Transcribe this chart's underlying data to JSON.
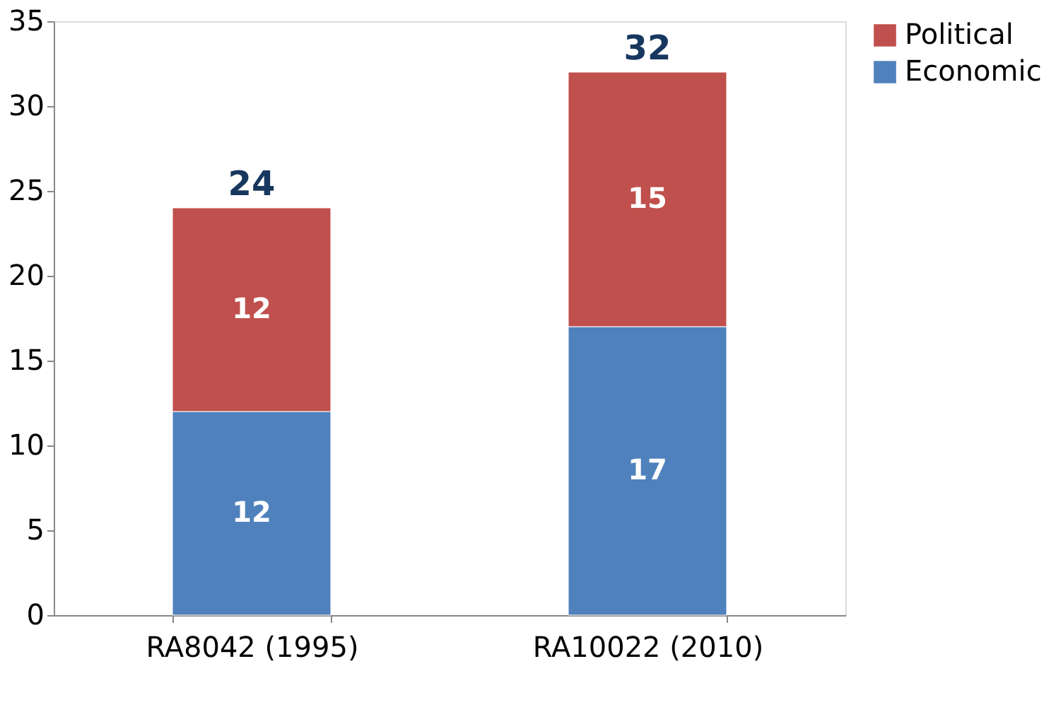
{
  "chart_data": {
    "type": "bar",
    "stacked": true,
    "categories": [
      "RA8042 (1995)",
      "RA10022 (2010)"
    ],
    "series": [
      {
        "name": "Economic",
        "color": "#4f81bd",
        "values": [
          12,
          17
        ]
      },
      {
        "name": "Political",
        "color": "#c0504d",
        "values": [
          12,
          15
        ]
      }
    ],
    "totals": [
      "24",
      "32"
    ],
    "data_labels": true,
    "ylim": [
      0,
      35
    ],
    "yticks": [
      0,
      5,
      10,
      15,
      20,
      25,
      30,
      35
    ],
    "grid": false,
    "legend": "right"
  }
}
